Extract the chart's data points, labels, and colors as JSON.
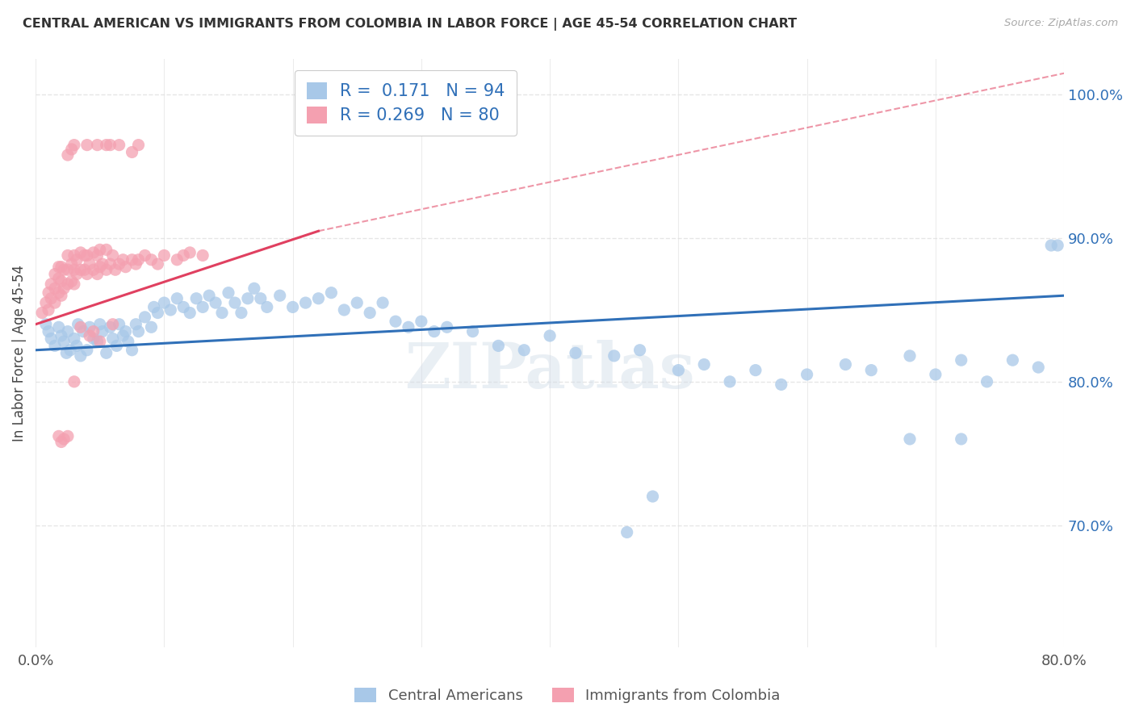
{
  "title": "CENTRAL AMERICAN VS IMMIGRANTS FROM COLOMBIA IN LABOR FORCE | AGE 45-54 CORRELATION CHART",
  "source": "Source: ZipAtlas.com",
  "ylabel": "In Labor Force | Age 45-54",
  "x_min": 0.0,
  "x_max": 0.8,
  "y_min": 0.615,
  "y_max": 1.025,
  "x_tick_positions": [
    0.0,
    0.1,
    0.2,
    0.3,
    0.4,
    0.5,
    0.6,
    0.7,
    0.8
  ],
  "x_tick_labels": [
    "0.0%",
    "",
    "",
    "",
    "",
    "",
    "",
    "",
    "80.0%"
  ],
  "y_ticks_right": [
    1.0,
    0.9,
    0.8,
    0.7
  ],
  "y_tick_labels_right": [
    "100.0%",
    "90.0%",
    "80.0%",
    "70.0%"
  ],
  "blue_color": "#a8c8e8",
  "pink_color": "#f4a0b0",
  "blue_line_color": "#3070b8",
  "pink_line_color": "#e04060",
  "text_color": "#3070b8",
  "label_color": "#555555",
  "legend_r_blue": "0.171",
  "legend_n_blue": "94",
  "legend_r_pink": "0.269",
  "legend_n_pink": "80",
  "legend_label_blue": "Central Americans",
  "legend_label_pink": "Immigrants from Colombia",
  "blue_scatter_x": [
    0.008,
    0.01,
    0.012,
    0.015,
    0.018,
    0.02,
    0.022,
    0.024,
    0.025,
    0.027,
    0.03,
    0.032,
    0.033,
    0.035,
    0.037,
    0.04,
    0.042,
    0.045,
    0.048,
    0.05,
    0.052,
    0.055,
    0.058,
    0.06,
    0.063,
    0.065,
    0.068,
    0.07,
    0.072,
    0.075,
    0.078,
    0.08,
    0.085,
    0.09,
    0.092,
    0.095,
    0.1,
    0.105,
    0.11,
    0.115,
    0.12,
    0.125,
    0.13,
    0.135,
    0.14,
    0.145,
    0.15,
    0.155,
    0.16,
    0.165,
    0.17,
    0.175,
    0.18,
    0.19,
    0.2,
    0.21,
    0.22,
    0.23,
    0.24,
    0.25,
    0.26,
    0.27,
    0.28,
    0.29,
    0.3,
    0.31,
    0.32,
    0.34,
    0.36,
    0.38,
    0.4,
    0.42,
    0.45,
    0.47,
    0.5,
    0.52,
    0.54,
    0.56,
    0.58,
    0.6,
    0.63,
    0.65,
    0.68,
    0.7,
    0.72,
    0.74,
    0.76,
    0.78,
    0.79,
    0.795,
    0.68,
    0.72,
    0.46,
    0.48
  ],
  "blue_scatter_y": [
    0.84,
    0.835,
    0.83,
    0.825,
    0.838,
    0.832,
    0.828,
    0.82,
    0.835,
    0.822,
    0.83,
    0.825,
    0.84,
    0.818,
    0.835,
    0.822,
    0.838,
    0.83,
    0.828,
    0.84,
    0.835,
    0.82,
    0.838,
    0.83,
    0.825,
    0.84,
    0.832,
    0.835,
    0.828,
    0.822,
    0.84,
    0.835,
    0.845,
    0.838,
    0.852,
    0.848,
    0.855,
    0.85,
    0.858,
    0.852,
    0.848,
    0.858,
    0.852,
    0.86,
    0.855,
    0.848,
    0.862,
    0.855,
    0.848,
    0.858,
    0.865,
    0.858,
    0.852,
    0.86,
    0.852,
    0.855,
    0.858,
    0.862,
    0.85,
    0.855,
    0.848,
    0.855,
    0.842,
    0.838,
    0.842,
    0.835,
    0.838,
    0.835,
    0.825,
    0.822,
    0.832,
    0.82,
    0.818,
    0.822,
    0.808,
    0.812,
    0.8,
    0.808,
    0.798,
    0.805,
    0.812,
    0.808,
    0.818,
    0.805,
    0.815,
    0.8,
    0.815,
    0.81,
    0.895,
    0.895,
    0.76,
    0.76,
    0.695,
    0.72
  ],
  "pink_scatter_x": [
    0.005,
    0.008,
    0.01,
    0.01,
    0.012,
    0.012,
    0.015,
    0.015,
    0.015,
    0.018,
    0.018,
    0.018,
    0.02,
    0.02,
    0.02,
    0.022,
    0.022,
    0.025,
    0.025,
    0.025,
    0.028,
    0.028,
    0.03,
    0.03,
    0.03,
    0.032,
    0.032,
    0.035,
    0.035,
    0.038,
    0.038,
    0.04,
    0.04,
    0.042,
    0.045,
    0.045,
    0.048,
    0.048,
    0.05,
    0.05,
    0.052,
    0.055,
    0.055,
    0.058,
    0.06,
    0.062,
    0.065,
    0.068,
    0.07,
    0.075,
    0.078,
    0.08,
    0.085,
    0.09,
    0.095,
    0.1,
    0.11,
    0.115,
    0.12,
    0.13,
    0.025,
    0.028,
    0.03,
    0.04,
    0.048,
    0.055,
    0.058,
    0.065,
    0.075,
    0.08,
    0.035,
    0.042,
    0.05,
    0.03,
    0.06,
    0.045,
    0.02,
    0.025,
    0.018,
    0.022
  ],
  "pink_scatter_y": [
    0.848,
    0.855,
    0.85,
    0.862,
    0.858,
    0.868,
    0.855,
    0.865,
    0.875,
    0.862,
    0.872,
    0.88,
    0.86,
    0.87,
    0.88,
    0.865,
    0.878,
    0.868,
    0.878,
    0.888,
    0.87,
    0.882,
    0.868,
    0.878,
    0.888,
    0.875,
    0.885,
    0.878,
    0.89,
    0.878,
    0.888,
    0.875,
    0.888,
    0.882,
    0.878,
    0.89,
    0.875,
    0.888,
    0.88,
    0.892,
    0.882,
    0.878,
    0.892,
    0.882,
    0.888,
    0.878,
    0.882,
    0.885,
    0.88,
    0.885,
    0.882,
    0.885,
    0.888,
    0.885,
    0.882,
    0.888,
    0.885,
    0.888,
    0.89,
    0.888,
    0.958,
    0.962,
    0.965,
    0.965,
    0.965,
    0.965,
    0.965,
    0.965,
    0.96,
    0.965,
    0.838,
    0.832,
    0.828,
    0.8,
    0.84,
    0.835,
    0.758,
    0.762,
    0.762,
    0.76
  ],
  "blue_trend": [
    0.0,
    0.8,
    0.822,
    0.86
  ],
  "pink_trend_solid": [
    0.0,
    0.22,
    0.84,
    0.905
  ],
  "pink_trend_dash": [
    0.22,
    0.8,
    0.905,
    1.015
  ],
  "watermark": "ZIPatlas",
  "background_color": "#ffffff",
  "grid_color": "#e0e0e0"
}
